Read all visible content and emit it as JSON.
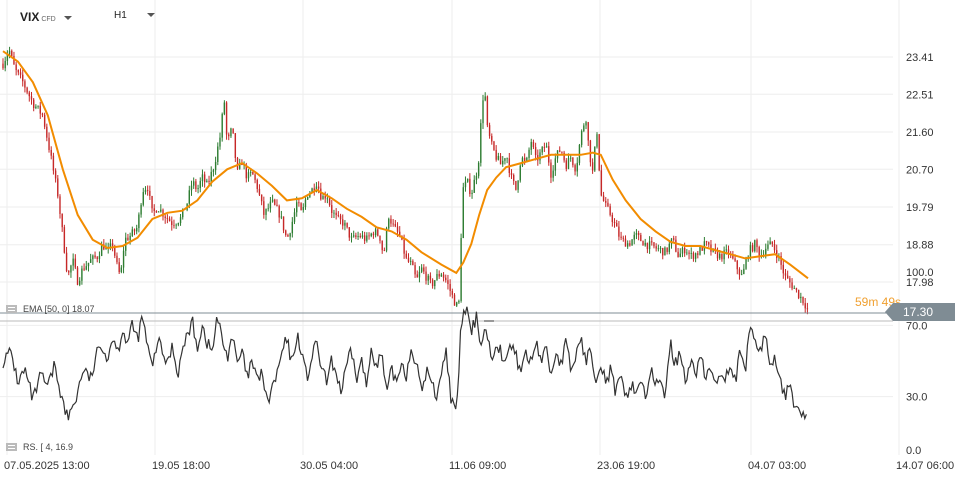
{
  "header": {
    "symbol": "VIX",
    "symbol_type": "CFD",
    "timeframe": "H1"
  },
  "indicators": {
    "ema_label": "EMA [50, 0] 18.07",
    "rsi_label": "RS.  [ 4, 16.9"
  },
  "last_price_label": "17.30",
  "countdown": "59m 49s",
  "colors": {
    "up_candle": "#2e7d32",
    "down_candle": "#c62828",
    "ema_line": "#f28c00",
    "rsi_line": "#333333",
    "grid": "#eeeeee",
    "price_tag": "#7f8c94"
  },
  "chart_data": [
    {
      "type": "candlestick",
      "title": "VIX CFD H1",
      "series_overlay": "EMA [50, 0] 18.07",
      "ylim": [
        17.1,
        23.8
      ],
      "y_ticks": [
        "23.41",
        "22.51",
        "21.60",
        "20.70",
        "19.79",
        "18.88",
        "17.98"
      ],
      "x_ticks": [
        "07.05.2025  13:00",
        "19.05  18:00",
        "30.05  04:00",
        "11.06  09:00",
        "23.06  19:00",
        "04.07  03:00",
        "14.07  06:00"
      ],
      "close_path": [
        [
          0,
          23.25
        ],
        [
          6,
          23.6
        ],
        [
          12,
          23.1
        ],
        [
          20,
          22.8
        ],
        [
          30,
          22.3
        ],
        [
          40,
          22.0
        ],
        [
          48,
          21.0
        ],
        [
          55,
          20.1
        ],
        [
          60,
          19.1
        ],
        [
          65,
          18.1
        ],
        [
          70,
          18.5
        ],
        [
          75,
          18.0
        ],
        [
          80,
          18.3
        ],
        [
          88,
          18.5
        ],
        [
          95,
          18.6
        ],
        [
          100,
          18.9
        ],
        [
          105,
          18.7
        ],
        [
          110,
          18.9
        ],
        [
          115,
          18.3
        ],
        [
          118,
          18.1
        ],
        [
          122,
          19.0
        ],
        [
          128,
          19.1
        ],
        [
          135,
          19.3
        ],
        [
          140,
          20.2
        ],
        [
          145,
          20.3
        ],
        [
          150,
          19.6
        ],
        [
          155,
          19.8
        ],
        [
          162,
          19.6
        ],
        [
          170,
          19.4
        ],
        [
          178,
          19.5
        ],
        [
          185,
          19.9
        ],
        [
          190,
          20.4
        ],
        [
          195,
          20.2
        ],
        [
          200,
          20.5
        ],
        [
          205,
          20.3
        ],
        [
          212,
          20.8
        ],
        [
          218,
          21.5
        ],
        [
          222,
          22.4
        ],
        [
          225,
          21.3
        ],
        [
          230,
          21.7
        ],
        [
          235,
          20.6
        ],
        [
          240,
          20.9
        ],
        [
          245,
          20.5
        ],
        [
          250,
          20.6
        ],
        [
          255,
          20.3
        ],
        [
          262,
          19.6
        ],
        [
          270,
          19.9
        ],
        [
          278,
          19.6
        ],
        [
          285,
          19.0
        ],
        [
          290,
          19.4
        ],
        [
          295,
          19.9
        ],
        [
          300,
          19.6
        ],
        [
          305,
          20.1
        ],
        [
          310,
          20.2
        ],
        [
          315,
          20.4
        ],
        [
          320,
          20.0
        ],
        [
          325,
          20.1
        ],
        [
          330,
          19.7
        ],
        [
          335,
          19.5
        ],
        [
          342,
          19.4
        ],
        [
          350,
          19.0
        ],
        [
          358,
          19.1
        ],
        [
          365,
          19.0
        ],
        [
          372,
          19.2
        ],
        [
          378,
          19.1
        ],
        [
          382,
          18.6
        ],
        [
          387,
          19.6
        ],
        [
          392,
          19.3
        ],
        [
          398,
          19.1
        ],
        [
          405,
          18.5
        ],
        [
          410,
          18.4
        ],
        [
          415,
          18.0
        ],
        [
          420,
          18.3
        ],
        [
          425,
          18.1
        ],
        [
          430,
          17.9
        ],
        [
          435,
          18.1
        ],
        [
          440,
          18.2
        ],
        [
          445,
          18.0
        ],
        [
          450,
          17.7
        ],
        [
          455,
          17.4
        ],
        [
          458,
          17.5
        ],
        [
          461,
          20.2
        ],
        [
          466,
          20.4
        ],
        [
          470,
          20.1
        ],
        [
          474,
          20.5
        ],
        [
          477,
          20.8
        ],
        [
          480,
          21.9
        ],
        [
          483,
          22.8
        ],
        [
          486,
          21.7
        ],
        [
          490,
          21.3
        ],
        [
          495,
          21.0
        ],
        [
          500,
          20.8
        ],
        [
          505,
          21.1
        ],
        [
          510,
          20.5
        ],
        [
          515,
          20.2
        ],
        [
          520,
          21.0
        ],
        [
          525,
          20.8
        ],
        [
          530,
          21.4
        ],
        [
          535,
          20.9
        ],
        [
          540,
          21.1
        ],
        [
          545,
          21.3
        ],
        [
          550,
          20.6
        ],
        [
          555,
          21.0
        ],
        [
          560,
          21.2
        ],
        [
          565,
          20.8
        ],
        [
          570,
          21.0
        ],
        [
          575,
          20.7
        ],
        [
          580,
          21.5
        ],
        [
          585,
          22.0
        ],
        [
          588,
          21.2
        ],
        [
          592,
          20.6
        ],
        [
          596,
          21.7
        ],
        [
          600,
          20.1
        ],
        [
          605,
          19.8
        ],
        [
          610,
          19.6
        ],
        [
          615,
          19.3
        ],
        [
          620,
          19.0
        ],
        [
          628,
          18.9
        ],
        [
          635,
          19.1
        ],
        [
          645,
          18.9
        ],
        [
          655,
          18.8
        ],
        [
          665,
          18.7
        ],
        [
          672,
          19.0
        ],
        [
          678,
          18.6
        ],
        [
          685,
          18.8
        ],
        [
          690,
          18.6
        ],
        [
          698,
          18.7
        ],
        [
          705,
          18.9
        ],
        [
          712,
          18.7
        ],
        [
          720,
          18.6
        ],
        [
          728,
          18.7
        ],
        [
          735,
          18.4
        ],
        [
          742,
          18.1
        ],
        [
          748,
          18.7
        ],
        [
          755,
          18.9
        ],
        [
          760,
          18.6
        ],
        [
          765,
          18.8
        ],
        [
          772,
          18.9
        ],
        [
          778,
          18.6
        ],
        [
          785,
          18.1
        ],
        [
          792,
          17.9
        ],
        [
          798,
          17.7
        ],
        [
          804,
          17.5
        ],
        [
          808,
          17.3
        ]
      ],
      "ema_path": [
        [
          0,
          23.55
        ],
        [
          15,
          23.3
        ],
        [
          30,
          22.8
        ],
        [
          45,
          22.0
        ],
        [
          60,
          20.7
        ],
        [
          75,
          19.6
        ],
        [
          90,
          19.0
        ],
        [
          105,
          18.8
        ],
        [
          120,
          18.85
        ],
        [
          135,
          19.05
        ],
        [
          150,
          19.5
        ],
        [
          165,
          19.65
        ],
        [
          180,
          19.7
        ],
        [
          195,
          19.95
        ],
        [
          210,
          20.4
        ],
        [
          225,
          20.7
        ],
        [
          240,
          20.85
        ],
        [
          255,
          20.6
        ],
        [
          270,
          20.3
        ],
        [
          285,
          19.95
        ],
        [
          300,
          20.0
        ],
        [
          315,
          20.2
        ],
        [
          330,
          20.0
        ],
        [
          345,
          19.75
        ],
        [
          360,
          19.55
        ],
        [
          375,
          19.3
        ],
        [
          390,
          19.2
        ],
        [
          405,
          19.0
        ],
        [
          420,
          18.7
        ],
        [
          440,
          18.4
        ],
        [
          455,
          18.2
        ],
        [
          462,
          18.45
        ],
        [
          470,
          18.9
        ],
        [
          478,
          19.6
        ],
        [
          486,
          20.2
        ],
        [
          495,
          20.5
        ],
        [
          505,
          20.75
        ],
        [
          520,
          20.85
        ],
        [
          535,
          20.95
        ],
        [
          550,
          21.05
        ],
        [
          565,
          21.05
        ],
        [
          580,
          21.05
        ],
        [
          592,
          21.1
        ],
        [
          600,
          21.05
        ],
        [
          612,
          20.45
        ],
        [
          625,
          19.95
        ],
        [
          640,
          19.5
        ],
        [
          655,
          19.2
        ],
        [
          670,
          18.95
        ],
        [
          685,
          18.85
        ],
        [
          700,
          18.85
        ],
        [
          715,
          18.75
        ],
        [
          730,
          18.65
        ],
        [
          745,
          18.55
        ],
        [
          760,
          18.6
        ],
        [
          775,
          18.65
        ],
        [
          790,
          18.4
        ],
        [
          808,
          18.07
        ]
      ]
    },
    {
      "type": "line",
      "title": "RSI",
      "series_label": "RS.  [ 4, 16.9",
      "ylim": [
        0,
        100
      ],
      "y_ticks": [
        "100.0",
        "70.0",
        "30.0",
        "0.0"
      ],
      "x": [
        0,
        8,
        15,
        22,
        30,
        38,
        45,
        52,
        58,
        62,
        66,
        70,
        74,
        80,
        88,
        95,
        100,
        105,
        110,
        115,
        120,
        125,
        130,
        135,
        140,
        145,
        150,
        155,
        160,
        165,
        170,
        175,
        180,
        185,
        190,
        195,
        200,
        205,
        210,
        215,
        220,
        225,
        230,
        235,
        240,
        245,
        250,
        255,
        260,
        265,
        270,
        275,
        280,
        285,
        290,
        295,
        300,
        305,
        310,
        315,
        320,
        325,
        330,
        335,
        340,
        345,
        350,
        355,
        360,
        365,
        370,
        375,
        380,
        385,
        390,
        395,
        400,
        405,
        410,
        415,
        420,
        425,
        430,
        435,
        440,
        445,
        450,
        455,
        460,
        465,
        470,
        475,
        480,
        485,
        490,
        495,
        500,
        505,
        510,
        515,
        520,
        525,
        530,
        535,
        540,
        545,
        550,
        555,
        560,
        565,
        570,
        575,
        580,
        585,
        590,
        595,
        600,
        605,
        610,
        615,
        620,
        625,
        630,
        635,
        640,
        645,
        650,
        655,
        660,
        665,
        670,
        675,
        680,
        685,
        690,
        695,
        700,
        705,
        710,
        715,
        720,
        725,
        730,
        735,
        740,
        745,
        750,
        755,
        760,
        765,
        770,
        775,
        780,
        785,
        790,
        795,
        800,
        805,
        808
      ],
      "values": [
        50,
        55,
        38,
        45,
        28,
        42,
        35,
        48,
        32,
        22,
        18,
        25,
        30,
        45,
        40,
        55,
        60,
        50,
        65,
        55,
        68,
        60,
        70,
        62,
        75,
        58,
        45,
        62,
        55,
        48,
        60,
        42,
        55,
        65,
        72,
        58,
        70,
        60,
        55,
        75,
        62,
        52,
        65,
        48,
        55,
        40,
        50,
        38,
        45,
        25,
        35,
        42,
        55,
        62,
        48,
        65,
        55,
        40,
        52,
        60,
        45,
        38,
        50,
        42,
        32,
        48,
        55,
        40,
        50,
        35,
        60,
        45,
        55,
        30,
        45,
        38,
        50,
        42,
        58,
        48,
        32,
        45,
        38,
        30,
        45,
        55,
        28,
        18,
        72,
        80,
        65,
        75,
        60,
        70,
        50,
        62,
        55,
        48,
        60,
        52,
        45,
        55,
        48,
        62,
        50,
        58,
        42,
        55,
        48,
        60,
        45,
        52,
        65,
        48,
        58,
        40,
        50,
        38,
        45,
        32,
        40,
        28,
        38,
        32,
        40,
        30,
        45,
        35,
        42,
        30,
        60,
        48,
        55,
        40,
        50,
        42,
        55,
        38,
        48,
        35,
        45,
        40,
        50,
        38,
        55,
        42,
        72,
        60,
        55,
        65,
        48,
        52,
        40,
        30,
        35,
        25,
        22,
        18,
        17
      ]
    }
  ]
}
